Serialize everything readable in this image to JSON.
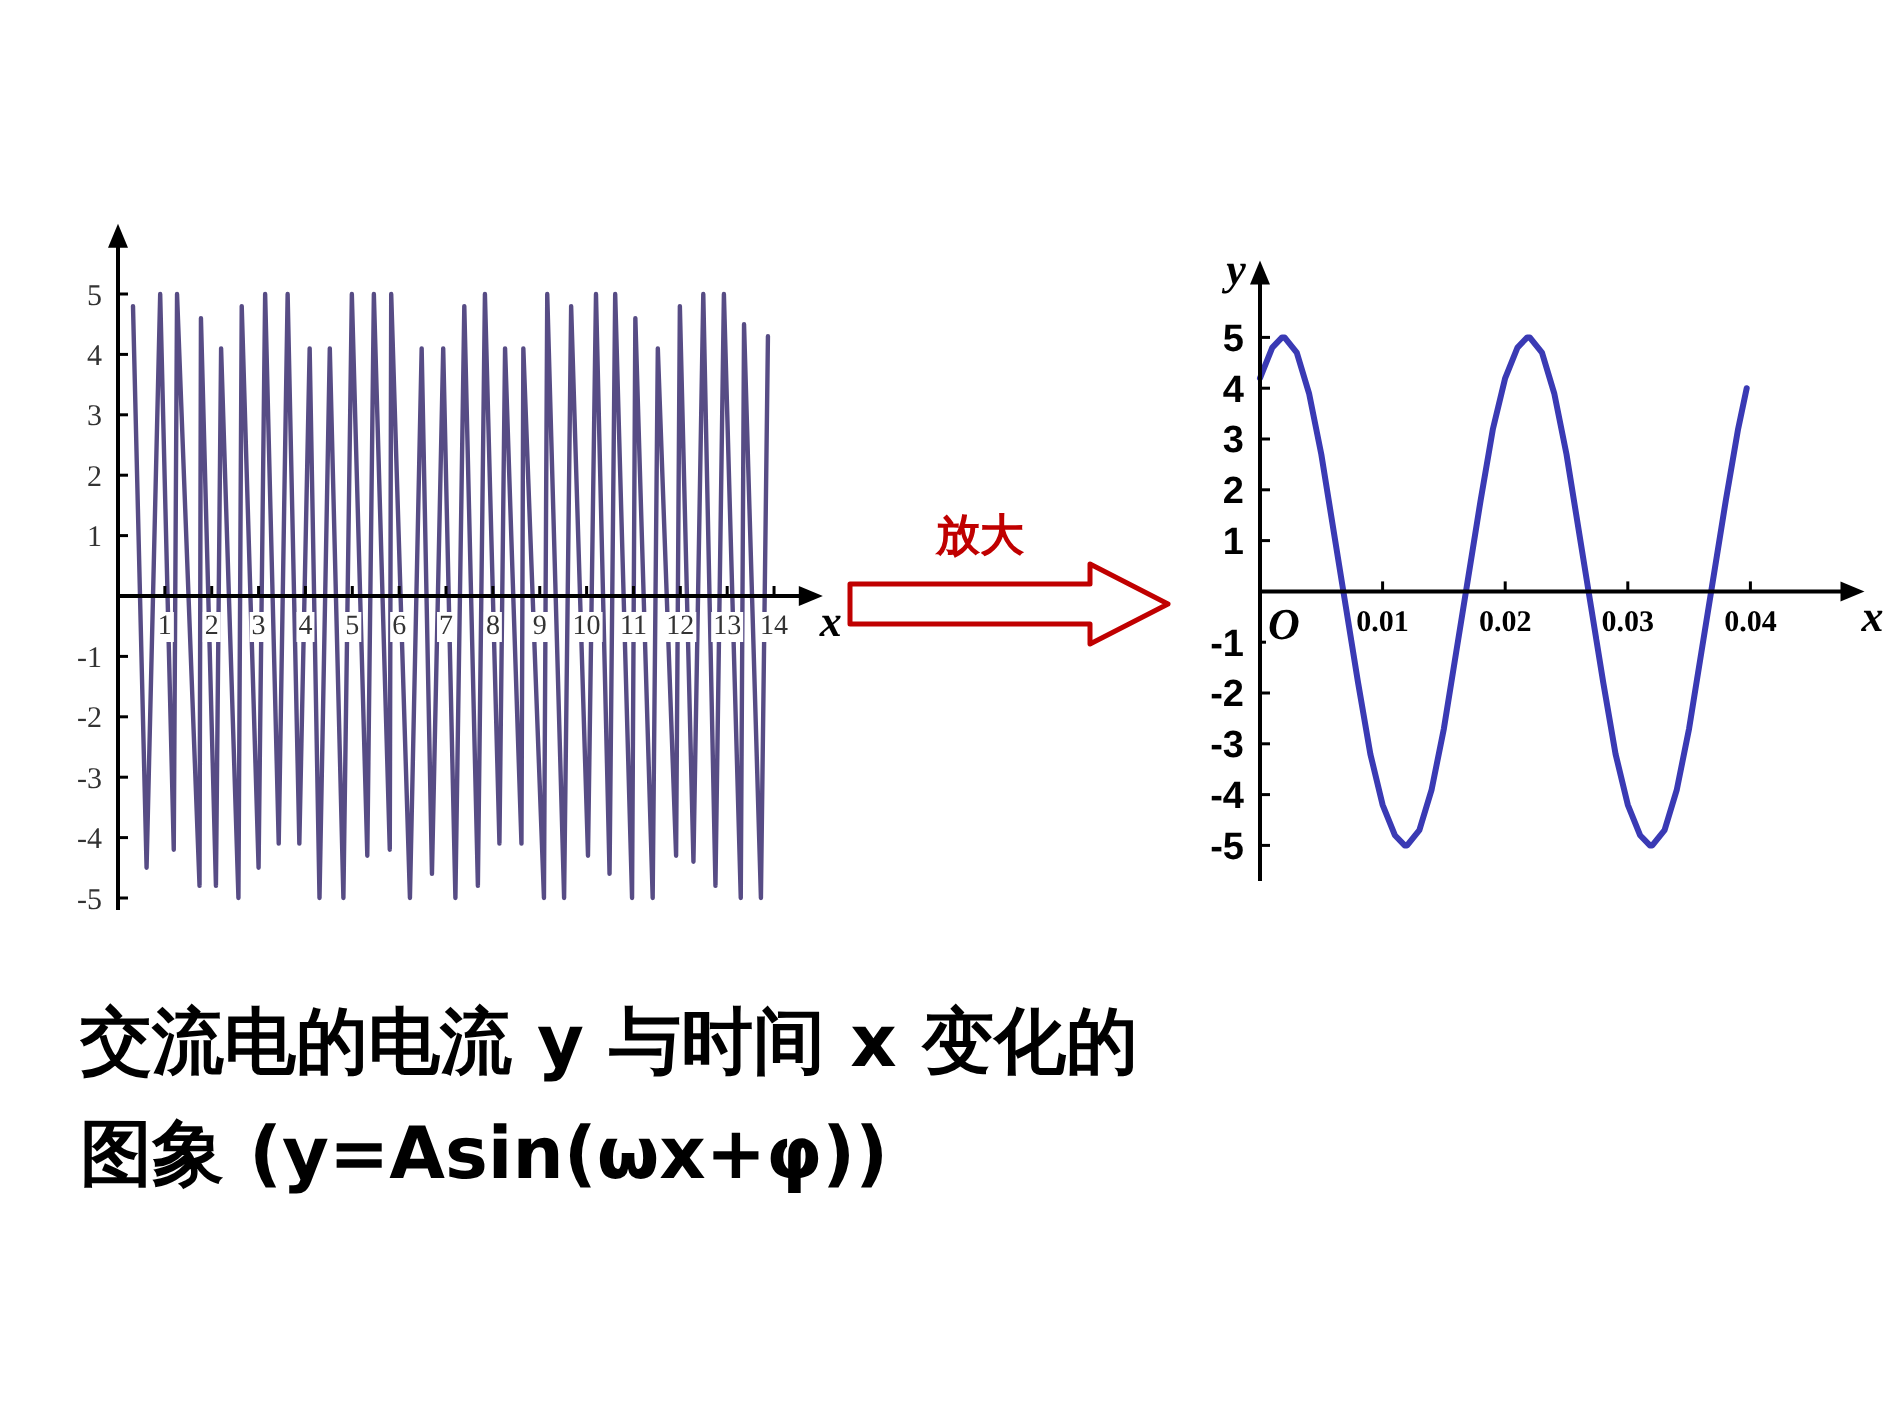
{
  "chart_data": [
    {
      "type": "line",
      "xlabel": "x",
      "xlim": [
        0,
        14.7
      ],
      "ylim": [
        -5.2,
        5.9
      ],
      "xticks": [
        1,
        2,
        3,
        4,
        5,
        6,
        7,
        8,
        9,
        10,
        11,
        12,
        13,
        14
      ],
      "yticks": [
        -5,
        -4,
        -3,
        -2,
        -1,
        1,
        2,
        3,
        4,
        5
      ],
      "x": [
        0.32,
        0.61,
        0.9,
        1.19,
        1.26,
        1.74,
        1.77,
        2.09,
        2.2,
        2.57,
        2.64,
        3.0,
        3.14,
        3.43,
        3.62,
        3.87,
        4.09,
        4.3,
        4.52,
        4.81,
        4.99,
        5.32,
        5.46,
        5.8,
        5.83,
        6.23,
        6.48,
        6.7,
        6.94,
        7.2,
        7.39,
        7.68,
        7.83,
        8.14,
        8.26,
        8.61,
        8.65,
        9.09,
        9.16,
        9.52,
        9.67,
        10.03,
        10.2,
        10.49,
        10.61,
        10.97,
        11.04,
        11.41,
        11.52,
        11.91,
        11.99,
        12.28,
        12.49,
        12.75,
        12.93,
        13.29,
        13.36,
        13.72,
        13.87
      ],
      "series": [
        {
          "color": "#574c85",
          "values": [
            4.8,
            -4.5,
            5,
            -4.2,
            5,
            -4.8,
            4.6,
            -4.8,
            4.1,
            -5,
            4.8,
            -4.5,
            5,
            -4.1,
            5,
            -4.1,
            4.1,
            -5,
            4.1,
            -5,
            5,
            -4.3,
            5,
            -4.2,
            5,
            -5,
            4.1,
            -4.6,
            4.1,
            -5,
            4.8,
            -4.8,
            5,
            -4.1,
            4.1,
            -4.1,
            4.1,
            -5,
            5,
            -5,
            4.8,
            -4.3,
            5,
            -4.6,
            5,
            -5,
            4.6,
            -5,
            4.1,
            -4.3,
            4.8,
            -4.4,
            5,
            -4.8,
            5,
            -5,
            4.5,
            -5,
            4.3
          ]
        }
      ],
      "annotations": [
        "放大",
        "交流电的电流 y 与时间 x 变化的图象 (y=Asin(ωx+φ))"
      ]
    },
    {
      "type": "line",
      "xlabel": "x",
      "ylabel": "y",
      "xlim": [
        0,
        0.048
      ],
      "ylim": [
        -5.7,
        6.2
      ],
      "xticks": [
        0.01,
        0.02,
        0.03,
        0.04
      ],
      "yticks": [
        -5,
        -4,
        -3,
        -2,
        -1,
        1,
        2,
        3,
        4,
        5
      ],
      "x": [
        0,
        0.001,
        0.0018,
        0.002,
        0.003,
        0.004,
        0.005,
        0.006,
        0.007,
        0.008,
        0.009,
        0.01,
        0.011,
        0.0118,
        0.012,
        0.013,
        0.014,
        0.015,
        0.016,
        0.017,
        0.018,
        0.019,
        0.02,
        0.021,
        0.0218,
        0.022,
        0.023,
        0.024,
        0.025,
        0.026,
        0.027,
        0.028,
        0.029,
        0.03,
        0.031,
        0.0318,
        0.032,
        0.033,
        0.034,
        0.035,
        0.036,
        0.037,
        0.038,
        0.039,
        0.0397
      ],
      "series": [
        {
          "color": "#3a3ab4",
          "values": [
            4.2,
            4.8,
            5,
            5,
            4.7,
            3.9,
            2.7,
            1.2,
            -0.3,
            -1.8,
            -3.2,
            -4.2,
            -4.8,
            -5,
            -5,
            -4.7,
            -3.9,
            -2.7,
            -1.2,
            0.3,
            1.8,
            3.2,
            4.2,
            4.8,
            5,
            5,
            4.7,
            3.9,
            2.7,
            1.2,
            -0.3,
            -1.8,
            -3.2,
            -4.2,
            -4.8,
            -5,
            -5,
            -4.7,
            -3.9,
            -2.7,
            -1.2,
            0.3,
            1.8,
            3.2,
            4.0
          ]
        }
      ],
      "annotations": [
        "O"
      ]
    }
  ]
}
